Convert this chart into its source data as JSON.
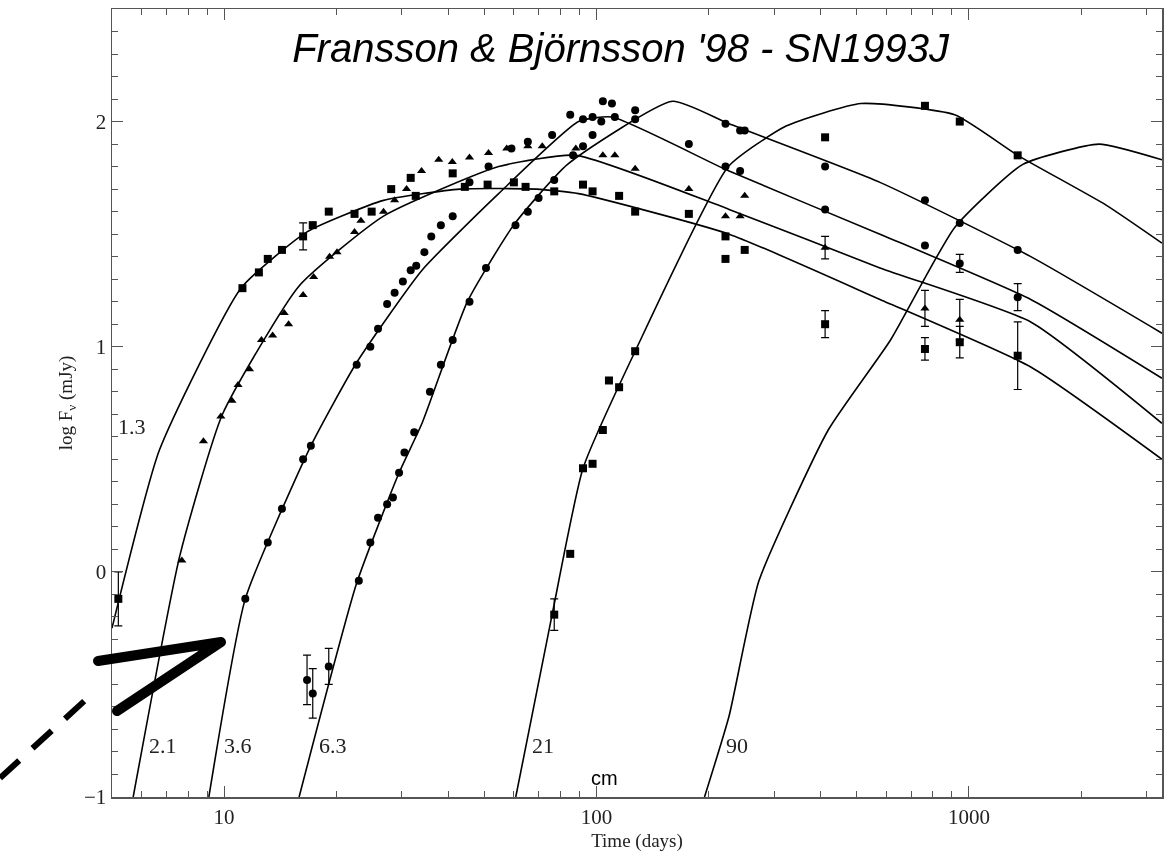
{
  "chart_data": {
    "type": "scatter",
    "title": "Fransson & Björnsson '98 - SN1993J",
    "xlabel": "Time (days)",
    "ylabel": "log F$_{ν}$ (mJy)",
    "log": "x",
    "grid": false,
    "legend": false,
    "xlim": [
      5,
      3300
    ],
    "ylim": [
      -1,
      2.5
    ],
    "xticks": [
      {
        "value": 6,
        "label": null
      },
      {
        "value": 7,
        "label": null
      },
      {
        "value": 8,
        "label": null
      },
      {
        "value": 9,
        "label": null
      },
      10,
      {
        "value": 20,
        "label": null
      },
      {
        "value": 30,
        "label": null
      },
      {
        "value": 40,
        "label": null
      },
      {
        "value": 50,
        "label": null
      },
      {
        "value": 60,
        "label": null
      },
      {
        "value": 70,
        "label": null
      },
      {
        "value": 80,
        "label": null
      },
      {
        "value": 90,
        "label": null
      },
      100,
      {
        "value": 200,
        "label": null
      },
      {
        "value": 300,
        "label": null
      },
      {
        "value": 400,
        "label": null
      },
      {
        "value": 500,
        "label": null
      },
      {
        "value": 600,
        "label": null
      },
      {
        "value": 700,
        "label": null
      },
      {
        "value": 800,
        "label": null
      },
      {
        "value": 900,
        "label": null
      },
      1000,
      {
        "value": 2000,
        "label": null
      },
      {
        "value": 3000,
        "label": null
      }
    ],
    "yticks": [
      -1,
      {
        "value": -0.9,
        "label": null
      },
      {
        "value": -0.8,
        "label": null
      },
      {
        "value": -0.7,
        "label": null
      },
      {
        "value": -0.6,
        "label": null
      },
      {
        "value": -0.5,
        "label": null
      },
      {
        "value": -0.4,
        "label": null
      },
      {
        "value": -0.3,
        "label": null
      },
      {
        "value": -0.2,
        "label": null
      },
      {
        "value": -0.1,
        "label": null
      },
      0,
      {
        "value": 0.1,
        "label": null
      },
      {
        "value": 0.2,
        "label": null
      },
      {
        "value": 0.3,
        "label": null
      },
      {
        "value": 0.4,
        "label": null
      },
      {
        "value": 0.5,
        "label": null
      },
      {
        "value": 0.6,
        "label": null
      },
      {
        "value": 0.7,
        "label": null
      },
      {
        "value": 0.8,
        "label": null
      },
      {
        "value": 0.9,
        "label": null
      },
      1,
      {
        "value": 1.1,
        "label": null
      },
      {
        "value": 1.2,
        "label": null
      },
      {
        "value": 1.3,
        "label": null
      },
      {
        "value": 1.4,
        "label": null
      },
      {
        "value": 1.5,
        "label": null
      },
      {
        "value": 1.6,
        "label": null
      },
      {
        "value": 1.7,
        "label": null
      },
      {
        "value": 1.8,
        "label": null
      },
      {
        "value": 1.9,
        "label": null
      },
      2,
      {
        "value": 2.1,
        "label": null
      },
      {
        "value": 2.2,
        "label": null
      },
      {
        "value": 2.3,
        "label": null
      },
      {
        "value": 2.4,
        "label": null
      }
    ],
    "series": [
      {
        "marker": "square",
        "color": "#000000",
        "x": [
          5.2,
          11.2,
          12.4,
          13.1,
          14.3,
          16.3,
          17.3,
          19.1,
          22.4,
          24.9,
          28.1,
          31.7,
          32.7,
          41.1,
          44.3,
          51,
          60,
          64.5,
          77,
          92,
          97.6,
          115,
          127,
          177,
          222,
          222,
          250,
          411,
          762,
          945,
          1352
        ],
        "values": [
          -0.12,
          1.26,
          1.33,
          1.39,
          1.43,
          1.49,
          1.54,
          1.6,
          1.59,
          1.6,
          1.7,
          1.75,
          1.67,
          1.77,
          1.71,
          1.72,
          1.73,
          1.71,
          1.69,
          1.72,
          1.69,
          1.67,
          1.6,
          1.59,
          1.49,
          1.39,
          1.43,
          1.1,
          0.99,
          1.02,
          0.96
        ],
        "errors": [
          0.12,
          null,
          null,
          null,
          null,
          0.06,
          null,
          null,
          null,
          null,
          null,
          null,
          null,
          null,
          null,
          null,
          null,
          null,
          null,
          null,
          null,
          null,
          null,
          null,
          null,
          null,
          null,
          0.06,
          0.05,
          0.07,
          0.15
        ]
      },
      {
        "marker": "triangle",
        "color": "#000000",
        "x": [
          7.7,
          8.8,
          9.8,
          10.5,
          10.9,
          11.7,
          12.6,
          13.5,
          14.5,
          14.9,
          16.3,
          17.4,
          19.2,
          20.1,
          22.4,
          23.3,
          26.8,
          28.7,
          30.9,
          33.9,
          37.7,
          41,
          45.6,
          51.3,
          57.4,
          65.4,
          71.5,
          88,
          104,
          112,
          127,
          177,
          222,
          243,
          250,
          411,
          762,
          945
        ],
        "values": [
          0.05,
          0.58,
          0.69,
          0.76,
          0.83,
          0.9,
          1.03,
          1.05,
          1.15,
          1.1,
          1.23,
          1.31,
          1.4,
          1.42,
          1.51,
          1.56,
          1.6,
          1.65,
          1.7,
          1.78,
          1.83,
          1.82,
          1.84,
          1.86,
          1.88,
          1.89,
          1.89,
          1.88,
          1.85,
          1.85,
          1.79,
          1.7,
          1.58,
          1.58,
          1.67,
          1.44,
          1.17,
          1.12
        ],
        "errors": [
          null,
          null,
          null,
          null,
          null,
          null,
          null,
          null,
          null,
          null,
          null,
          null,
          null,
          null,
          null,
          null,
          null,
          null,
          null,
          null,
          null,
          null,
          null,
          null,
          null,
          null,
          null,
          null,
          null,
          null,
          null,
          null,
          null,
          null,
          null,
          0.05,
          0.08,
          0.09
        ]
      },
      {
        "marker": "circle",
        "color": "#000000",
        "x": [
          11.4,
          13.1,
          14.3,
          16.3,
          17.1,
          22.7,
          24.7,
          25.9,
          27.4,
          28.7,
          30.2,
          31.7,
          32.8,
          34.5,
          36,
          38.2,
          41.1,
          45.6,
          51.3,
          59.1,
          65.4,
          76,
          85,
          92,
          97.6,
          104,
          110,
          127,
          177,
          222,
          243,
          411,
          762,
          945,
          1352
        ],
        "values": [
          -0.12,
          0.13,
          0.28,
          0.5,
          0.56,
          0.92,
          1.0,
          1.08,
          1.19,
          1.24,
          1.29,
          1.34,
          1.36,
          1.42,
          1.49,
          1.54,
          1.58,
          1.73,
          1.8,
          1.88,
          1.91,
          1.94,
          2.03,
          2.01,
          2.02,
          2.09,
          2.08,
          2.01,
          1.9,
          1.8,
          1.78,
          1.61,
          1.45,
          1.37,
          1.22
        ],
        "errors": [
          null,
          null,
          null,
          null,
          null,
          null,
          null,
          null,
          null,
          null,
          null,
          null,
          null,
          null,
          null,
          null,
          null,
          null,
          null,
          null,
          null,
          null,
          null,
          null,
          null,
          null,
          null,
          null,
          null,
          null,
          null,
          null,
          null,
          0.04,
          0.06
        ]
      },
      {
        "marker": "circle",
        "color": "#000000",
        "x": [
          16.7,
          17.3,
          19.1,
          23,
          24.7,
          25.9,
          27.4,
          28.4,
          29.5,
          30.5,
          32.4,
          35.7,
          38.2,
          41.1,
          45.6,
          50.5,
          60.6,
          65.4,
          69.9,
          77,
          86.5,
          92,
          97.6,
          103,
          112,
          127,
          222,
          243,
          250,
          411,
          762,
          945,
          1352
        ],
        "values": [
          -0.48,
          -0.54,
          -0.42,
          -0.04,
          0.13,
          0.24,
          0.3,
          0.33,
          0.44,
          0.53,
          0.62,
          0.8,
          0.92,
          1.03,
          1.2,
          1.35,
          1.54,
          1.6,
          1.66,
          1.74,
          1.85,
          1.89,
          1.94,
          2.0,
          2.02,
          2.05,
          1.99,
          1.96,
          1.96,
          1.8,
          1.65,
          1.55,
          1.43
        ],
        "errors": [
          0.11,
          0.11,
          0.08,
          null,
          null,
          null,
          null,
          null,
          null,
          null,
          null,
          null,
          null,
          null,
          null,
          null,
          null,
          null,
          null,
          null,
          null,
          null,
          null,
          null,
          null,
          null,
          null,
          null,
          null,
          null,
          null,
          null,
          null
        ]
      },
      {
        "marker": "square",
        "color": "#000000",
        "x": [
          77,
          85,
          92,
          97.6,
          104,
          108,
          115,
          127,
          411,
          762,
          945,
          1352
        ],
        "values": [
          -0.19,
          0.08,
          0.46,
          0.48,
          0.63,
          0.85,
          0.82,
          0.98,
          1.93,
          2.07,
          2.0,
          1.85
        ],
        "errors": [
          0.07,
          null,
          null,
          null,
          null,
          null,
          null,
          null,
          null,
          null,
          null,
          null
        ]
      },
      {
        "type": "line",
        "name": "1.3",
        "line_style": "solid",
        "color": "#000000",
        "x": [
          5,
          6.7,
          11.1,
          16.7,
          26.8,
          43,
          69,
          89.5,
          227,
          577,
          1466,
          3300
        ],
        "values": [
          -0.25,
          0.54,
          1.26,
          1.51,
          1.65,
          1.7,
          1.7,
          1.68,
          1.5,
          1.21,
          0.91,
          0.5
        ]
      },
      {
        "type": "line",
        "name": "2.1",
        "line_style": "solid",
        "color": "#000000",
        "x": [
          5.7,
          7.6,
          9.9,
          15.9,
          26.8,
          54.6,
          88,
          227,
          577,
          1466,
          3300
        ],
        "values": [
          -1,
          0.07,
          0.7,
          1.27,
          1.58,
          1.8,
          1.85,
          1.61,
          1.35,
          1.11,
          0.66
        ]
      },
      {
        "type": "line",
        "name": "3.6",
        "line_style": "solid",
        "color": "#000000",
        "x": [
          9.1,
          11.4,
          17.1,
          22.7,
          34,
          54.6,
          89.5,
          110,
          227,
          577,
          1466,
          3300
        ],
        "values": [
          -1,
          -0.12,
          0.56,
          0.93,
          1.34,
          1.68,
          2.0,
          2.02,
          1.78,
          1.5,
          1.21,
          0.86
        ]
      },
      {
        "type": "line",
        "name": "6.3",
        "line_style": "solid",
        "color": "#000000",
        "x": [
          15.9,
          22.7,
          29.5,
          34,
          45,
          59.9,
          83.6,
          160,
          227,
          577,
          1466,
          3300
        ],
        "values": [
          -1,
          -0.05,
          0.44,
          0.66,
          1.2,
          1.54,
          1.81,
          2.09,
          1.99,
          1.73,
          1.4,
          1.06
        ]
      },
      {
        "type": "line",
        "name": "21",
        "line_style": "solid",
        "color": "#000000",
        "x": [
          60.7,
          76,
          92,
          127,
          226,
          323,
          513,
          916,
          1352,
          2330,
          3300
        ],
        "values": [
          -1,
          -0.19,
          0.46,
          0.98,
          1.8,
          1.98,
          2.08,
          2.03,
          1.85,
          1.63,
          1.46
        ]
      },
      {
        "type": "line",
        "name": "90",
        "line_style": "solid",
        "color": "#000000",
        "x": [
          195,
          227,
          273,
          419,
          616,
          916,
          1396,
          2234,
          3300
        ],
        "values": [
          -1,
          -0.64,
          -0.04,
          0.63,
          1.03,
          1.53,
          1.81,
          1.9,
          1.83
        ]
      }
    ],
    "annotations": [
      "cm"
    ]
  }
}
